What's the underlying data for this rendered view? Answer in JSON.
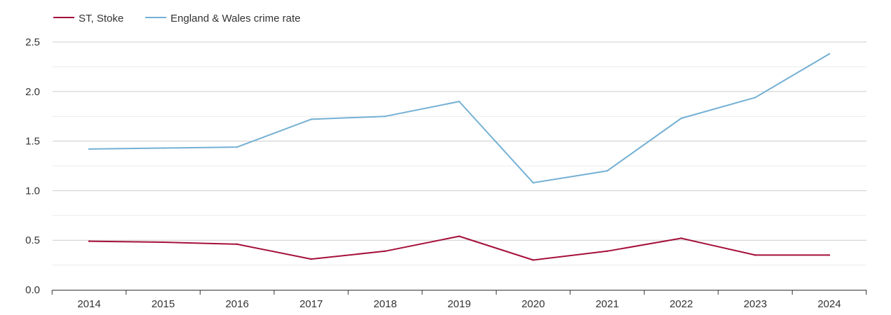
{
  "chart_data": {
    "type": "line",
    "title": "",
    "xlabel": "",
    "ylabel": "",
    "categories": [
      "2014",
      "2015",
      "2016",
      "2017",
      "2018",
      "2019",
      "2020",
      "2021",
      "2022",
      "2023",
      "2024"
    ],
    "ylim": [
      0,
      2.5
    ],
    "yticks": [
      "0.0",
      "0.5",
      "1.0",
      "1.5",
      "2.0",
      "2.5"
    ],
    "grid": true,
    "legend_position": "top-left",
    "series": [
      {
        "name": "ST, Stoke",
        "color": "#a50f3a",
        "values": [
          0.49,
          0.48,
          0.46,
          0.31,
          0.39,
          0.54,
          0.3,
          0.39,
          0.52,
          0.35,
          0.35
        ]
      },
      {
        "name": "England & Wales crime rate",
        "color": "#74b0d4",
        "values": [
          1.42,
          1.43,
          1.44,
          1.72,
          1.75,
          1.9,
          1.08,
          1.2,
          1.73,
          1.94,
          2.38
        ]
      }
    ]
  }
}
